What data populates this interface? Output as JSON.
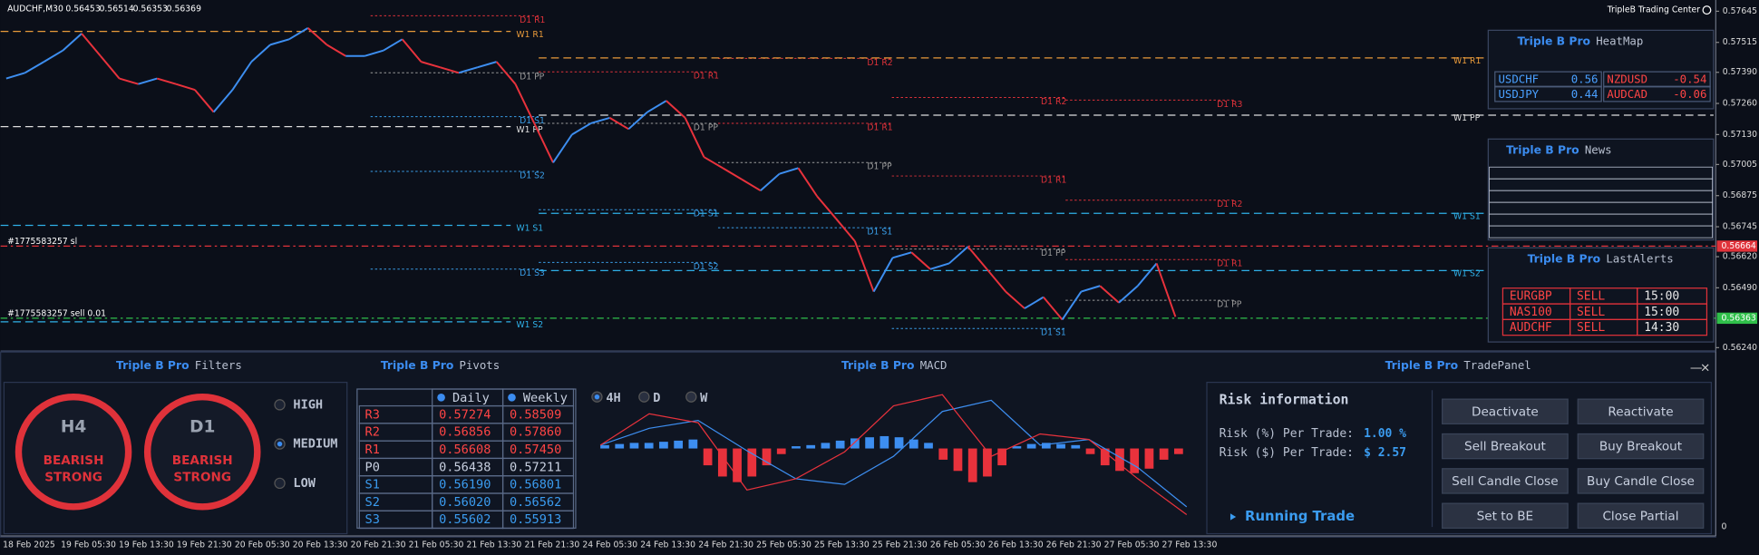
{
  "header": {
    "symbol": "AUDCHF,M30",
    "ohlc": [
      "0.56453",
      "0.56514",
      "0.56353",
      "0.56369"
    ],
    "brand": "TripleB Trading Center"
  },
  "chart_data": {
    "type": "line",
    "ylim": [
      0.56231,
      0.57692
    ],
    "yticks": [
      0.57645,
      0.57515,
      {
        "value": 0.5739,
        "label": "0.57390"
      },
      {
        "value": 0.5726,
        "label": "0.57260"
      },
      {
        "value": 0.5713,
        "label": "0.57130"
      },
      0.57005,
      0.56875,
      0.56745,
      {
        "value": 0.5662,
        "label": "0.56620"
      },
      {
        "value": 0.5649,
        "label": "0.56490"
      },
      {
        "value": 0.5624,
        "label": "0.56240"
      }
    ],
    "time_labels": [
      "18 Feb 2025",
      "19 Feb 05:30",
      "19 Feb 13:30",
      "19 Feb 21:30",
      "20 Feb 05:30",
      "20 Feb 13:30",
      "20 Feb 21:30",
      "21 Feb 05:30",
      "21 Feb 13:30",
      "21 Feb 21:30",
      "24 Feb 05:30",
      "24 Feb 13:30",
      "24 Feb 21:30",
      "25 Feb 05:30",
      "25 Feb 13:30",
      "25 Feb 21:30",
      "26 Feb 05:30",
      "26 Feb 13:30",
      "26 Feb 21:30",
      "27 Feb 05:30",
      "27 Feb 13:30"
    ],
    "values": [
      0.57364,
      0.57388,
      0.57434,
      0.57481,
      0.57552,
      0.57458,
      0.57364,
      0.57341,
      0.57364,
      0.57341,
      0.57317,
      0.57224,
      0.57317,
      0.57434,
      0.57505,
      0.57528,
      0.57575,
      0.57505,
      0.57458,
      0.57458,
      0.57481,
      0.57528,
      0.57434,
      0.57411,
      0.57388,
      0.57411,
      0.57434,
      0.57341,
      0.57177,
      0.57013,
      0.5713,
      0.57177,
      0.572,
      0.57153,
      0.57224,
      0.57271,
      0.572,
      0.57036,
      0.5699,
      0.56943,
      0.56896,
      0.56966,
      0.5699,
      0.56872,
      0.56779,
      0.56685,
      0.56474,
      0.56615,
      0.56638,
      0.56568,
      0.56592,
      0.56662,
      0.56568,
      0.56474,
      0.56404,
      0.56451,
      0.56357,
      0.56474,
      0.56498,
      0.56428,
      0.56498,
      0.56592,
      0.56369
    ],
    "up_color": "#3d8ef0",
    "down_color": "#e8323c",
    "daily_levels": [
      {
        "label": "D1 R1",
        "value": 0.57626
      },
      {
        "label": "D1 PP",
        "value": 0.57388
      },
      {
        "label": "D1 S1",
        "value": 0.57205
      },
      {
        "label": "D1 S2",
        "value": 0.56976
      },
      {
        "label": "D1 S3",
        "value": 0.56568
      },
      {
        "label": "D1 R1",
        "value": 0.57392
      },
      {
        "label": "D1 PP",
        "value": 0.57177
      },
      {
        "label": "D1 S1",
        "value": 0.56816
      },
      {
        "label": "D1 S2",
        "value": 0.56596
      },
      {
        "label": "D1 R2",
        "value": 0.57448
      },
      {
        "label": "D1 R1",
        "value": 0.57177
      },
      {
        "label": "D1 PP",
        "value": 0.57013
      },
      {
        "label": "D1 S1",
        "value": 0.56741
      },
      {
        "label": "D1 R2",
        "value": 0.57285
      },
      {
        "label": "D1 R1",
        "value": 0.56957
      },
      {
        "label": "D1 PP",
        "value": 0.56652
      },
      {
        "label": "D1 S1",
        "value": 0.5632
      },
      {
        "label": "D1 R3",
        "value": 0.57274
      },
      {
        "label": "D1 R2",
        "value": 0.56856
      },
      {
        "label": "D1 R1",
        "value": 0.56608
      },
      {
        "label": "D1 PP",
        "value": 0.56438
      }
    ],
    "weekly_levels": [
      {
        "label": "W1 R1",
        "value": 0.57561
      },
      {
        "label": "W1 PP",
        "value": 0.57163
      },
      {
        "label": "W1 S1",
        "value": 0.56751
      },
      {
        "label": "W1 S2",
        "value": 0.56348
      },
      {
        "label": "W1 R1",
        "value": 0.5745
      },
      {
        "label": "W1 PP",
        "value": 0.57211
      },
      {
        "label": "W1 S1",
        "value": 0.56801
      },
      {
        "label": "W1 S2",
        "value": 0.56562
      }
    ],
    "daily_colors": {
      "R": "#e0323a",
      "P": "#9a9a9a",
      "S": "#3a9ee8"
    },
    "weekly_colors": {
      "R": "#e89a3a",
      "P": "#dddddd",
      "S": "#2fb0e8"
    },
    "trades": [
      {
        "label": "#1775583257 sl",
        "value": 0.56664,
        "color": "#e0323a"
      },
      {
        "label": "#1775583257 sell 0.01",
        "value": 0.56363,
        "color": "#2fbf4a"
      }
    ]
  },
  "macd_panel": {
    "title_brand": "Triple B Pro",
    "title": "MACD",
    "timeframes": [
      "4H",
      "D",
      "W"
    ],
    "ylim": [
      -14,
      12
    ],
    "histogram": [
      0.6,
      0.8,
      1,
      1,
      1.2,
      1.4,
      1.6,
      -3,
      -5,
      -6,
      -5,
      -3,
      -1,
      0.4,
      0.6,
      1,
      1.4,
      1.8,
      2,
      2.2,
      2,
      1.6,
      1,
      -2,
      -4,
      -6,
      -5,
      -3,
      0.4,
      0.8,
      1,
      0.8,
      0.6,
      -1,
      -3,
      -4,
      -4.4,
      -3.6,
      -2,
      -1
    ],
    "macd": [
      0.6,
      3.6,
      5,
      -0.4,
      -5.4,
      -6.4,
      -1.4,
      6.6,
      8.6,
      0.6,
      1.6,
      -3.4,
      -10.4
    ],
    "signal": [
      0.6,
      6.2,
      4.6,
      -7.4,
      -5.4,
      -0.6,
      7.6,
      9.6,
      -1.4,
      2.6,
      1.6,
      -5.4,
      -11.8
    ],
    "axis_label": "0"
  },
  "filters": {
    "title_brand": "Triple B Pro",
    "title": "Filters",
    "gauges": [
      {
        "tf": "H4",
        "lines": [
          "BEARISH",
          "STRONG"
        ]
      },
      {
        "tf": "D1",
        "lines": [
          "BEARISH",
          "STRONG"
        ]
      }
    ],
    "options": [
      "HIGH",
      "MEDIUM",
      "LOW"
    ]
  },
  "pivots": {
    "title_brand": "Triple B Pro",
    "title": "Pivots",
    "columns": [
      "Daily",
      "Weekly"
    ],
    "rows": [
      [
        "R3",
        "0.57274",
        "0.58509"
      ],
      [
        "R2",
        "0.56856",
        "0.57860"
      ],
      [
        "R1",
        "0.56608",
        "0.57450"
      ],
      [
        "P0",
        "0.56438",
        "0.57211"
      ],
      [
        "S1",
        "0.56190",
        "0.56801"
      ],
      [
        "S2",
        "0.56020",
        "0.56562"
      ],
      [
        "S3",
        "0.55602",
        "0.55913"
      ]
    ]
  },
  "trade_panel": {
    "title_brand": "Triple B Pro",
    "title": "TradePanel",
    "risk_title": "Risk information",
    "risk_rows": [
      [
        "Risk (%) Per Trade:",
        "1.00 %"
      ],
      [
        "Risk ($) Per Trade:",
        "$ 2.57"
      ]
    ],
    "running": "Running Trade",
    "buttons": [
      "Deactivate",
      "Reactivate",
      "Sell Breakout",
      "Buy Breakout",
      "Sell Candle Close",
      "Buy Candle Close",
      "Set to BE",
      "Close Partial"
    ]
  },
  "heatmap": {
    "title_brand": "Triple B Pro",
    "title": "HeatMap",
    "cells": [
      [
        "USDCHF",
        "0.56"
      ],
      [
        "NZDUSD",
        "-0.54"
      ],
      [
        "USDJPY",
        "0.44"
      ],
      [
        "AUDCAD",
        "-0.06"
      ]
    ]
  },
  "news": {
    "title_brand": "Triple B Pro",
    "title": "News"
  },
  "alerts": {
    "title_brand": "Triple B Pro",
    "title": "LastAlerts",
    "rows": [
      [
        "EURGBP",
        "SELL",
        "15:00"
      ],
      [
        "NAS100",
        "SELL",
        "15:00"
      ],
      [
        "AUDCHF",
        "SELL",
        "14:30"
      ]
    ]
  }
}
